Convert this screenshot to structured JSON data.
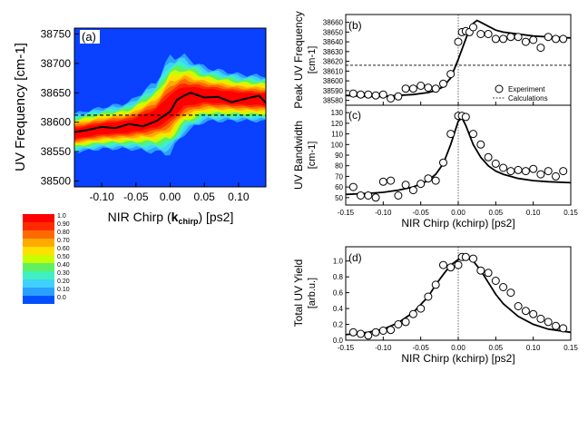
{
  "panel_a": {
    "label": "(a)",
    "ylabel": "UV Frequency [cm-1]",
    "xlabel_main": "NIR Chirp (",
    "xlabel_k": "k",
    "xlabel_sub": "chirp",
    "xlabel_end": ") [ps2]",
    "x_ticks": [
      "-0.10",
      "-0.05",
      "0.00",
      "0.05",
      "0.10"
    ],
    "y_ticks": [
      "38500",
      "38550",
      "38600",
      "38650",
      "38700",
      "38750"
    ]
  },
  "colorbar": {
    "labels": [
      "1.0",
      "0.90",
      "0.80",
      "0.70",
      "0.60",
      "0.50",
      "0.40",
      "0.30",
      "0.20",
      "0.10",
      "0.0"
    ],
    "colors": [
      "#ff0000",
      "#ff2a00",
      "#ff6a00",
      "#ffaa00",
      "#ffe000",
      "#c8ff00",
      "#60f060",
      "#40f0c0",
      "#40d0ff",
      "#2aa0ff",
      "#0050ff"
    ]
  },
  "panel_b": {
    "label": "(b)",
    "ylabel_line1": "Peak UV Frequency",
    "ylabel_line2": "[cm-1]",
    "y_ticks": [
      "38580",
      "38590",
      "38600",
      "38610",
      "38620",
      "38630",
      "38640",
      "38650",
      "38660"
    ],
    "legend_experiment": "Experiment",
    "legend_calculations": "Calculations"
  },
  "panel_c": {
    "label": "(c)",
    "ylabel_line1": "UV Bandwidth",
    "ylabel_line2": "[cm-1]",
    "y_ticks": [
      "50",
      "60",
      "70",
      "80",
      "90",
      "100",
      "110",
      "120",
      "130"
    ],
    "x_ticks": [
      "-0.15",
      "-0.10",
      "-0.05",
      "0.00",
      "0.05",
      "0.10",
      "0.15"
    ],
    "xlabel": "NIR Chirp (kchirp) [ps2]"
  },
  "panel_d": {
    "label": "(d)",
    "ylabel_line1": "Total UV Yield",
    "ylabel_line2": "[arb.u.]",
    "y_ticks": [
      "0.0",
      "0.2",
      "0.4",
      "0.6",
      "0.8",
      "1.0"
    ],
    "x_ticks": [
      "-0.15",
      "-0.10",
      "-0.05",
      "0.00",
      "0.05",
      "0.10",
      "0.15"
    ],
    "xlabel": "NIR Chirp (kchirp) [ps2]"
  },
  "chart_data": [
    {
      "type": "heatmap",
      "panel": "a",
      "xlim": [
        -0.14,
        0.14
      ],
      "ylim": [
        38490,
        38760
      ],
      "xlabel": "NIR Chirp (kchirp) [ps2]",
      "ylabel": "UV Frequency [cm-1]",
      "colorbar_range": [
        0.0,
        1.0
      ],
      "peak_line": {
        "x": [
          -0.14,
          -0.12,
          -0.1,
          -0.08,
          -0.06,
          -0.04,
          -0.02,
          0.0,
          0.01,
          0.02,
          0.03,
          0.05,
          0.07,
          0.09,
          0.11,
          0.13,
          0.14
        ],
        "y": [
          38583,
          38587,
          38592,
          38590,
          38597,
          38593,
          38602,
          38618,
          38638,
          38645,
          38650,
          38642,
          38643,
          38634,
          38640,
          38645,
          38633
        ]
      },
      "reference_dash_y": 38612,
      "band_center": {
        "x": [
          -0.14,
          -0.1,
          -0.06,
          -0.02,
          0.0,
          0.02,
          0.05,
          0.1,
          0.14
        ],
        "y": [
          38580,
          38588,
          38592,
          38606,
          38625,
          38643,
          38645,
          38640,
          38638
        ]
      },
      "band_halfwidth": {
        "x": [
          -0.14,
          -0.1,
          -0.06,
          -0.02,
          0.0,
          0.02,
          0.05,
          0.1,
          0.14
        ],
        "y": [
          30,
          32,
          36,
          55,
          75,
          60,
          42,
          36,
          35
        ]
      }
    },
    {
      "type": "scatter",
      "panel": "b",
      "xlim": [
        -0.15,
        0.15
      ],
      "ylim": [
        38575,
        38668
      ],
      "ylabel": "Peak UV Frequency [cm-1]",
      "reference_dash_y": 38616,
      "series": [
        {
          "name": "Experiment",
          "x": [
            -0.14,
            -0.13,
            -0.12,
            -0.11,
            -0.1,
            -0.09,
            -0.08,
            -0.07,
            -0.06,
            -0.05,
            -0.04,
            -0.03,
            -0.02,
            -0.01,
            0.0,
            0.005,
            0.01,
            0.015,
            0.02,
            0.03,
            0.04,
            0.05,
            0.06,
            0.07,
            0.08,
            0.09,
            0.1,
            0.11,
            0.12,
            0.13,
            0.14
          ],
          "y": [
            38587,
            38586,
            38586,
            38585,
            38586,
            38582,
            38584,
            38592,
            38592,
            38595,
            38593,
            38592,
            38597,
            38607,
            38640,
            38650,
            38651,
            38650,
            38655,
            38648,
            38648,
            38643,
            38643,
            38645,
            38645,
            38640,
            38642,
            38634,
            38645,
            38643,
            38643
          ]
        },
        {
          "name": "Calculations",
          "x": [
            -0.15,
            -0.12,
            -0.1,
            -0.08,
            -0.06,
            -0.04,
            -0.03,
            -0.02,
            -0.01,
            0.0,
            0.01,
            0.015,
            0.02,
            0.025,
            0.03,
            0.04,
            0.05,
            0.06,
            0.08,
            0.1,
            0.12,
            0.15
          ],
          "y": [
            38585,
            38584,
            38584,
            38585,
            38586,
            38588,
            38590,
            38594,
            38603,
            38622,
            38643,
            38653,
            38659,
            38662,
            38660,
            38656,
            38652,
            38650,
            38648,
            38646,
            38645,
            38644
          ]
        }
      ]
    },
    {
      "type": "scatter",
      "panel": "c",
      "xlim": [
        -0.15,
        0.15
      ],
      "ylim": [
        43,
        137
      ],
      "xlabel": "NIR Chirp (kchirp) [ps2]",
      "ylabel": "UV Bandwidth [cm-1]",
      "series": [
        {
          "name": "Experiment",
          "x": [
            -0.14,
            -0.13,
            -0.12,
            -0.11,
            -0.1,
            -0.09,
            -0.08,
            -0.07,
            -0.06,
            -0.05,
            -0.04,
            -0.03,
            -0.02,
            -0.01,
            0.0,
            0.005,
            0.01,
            0.02,
            0.03,
            0.04,
            0.05,
            0.06,
            0.07,
            0.08,
            0.09,
            0.1,
            0.11,
            0.12,
            0.13,
            0.14
          ],
          "y": [
            60,
            52,
            52,
            50,
            65,
            66,
            52,
            62,
            57,
            63,
            68,
            66,
            83,
            110,
            127,
            127,
            126,
            110,
            100,
            88,
            82,
            78,
            75,
            76,
            75,
            77,
            72,
            75,
            70,
            75
          ]
        },
        {
          "name": "Calculations",
          "x": [
            -0.15,
            -0.12,
            -0.1,
            -0.08,
            -0.06,
            -0.04,
            -0.03,
            -0.02,
            -0.01,
            0.0,
            0.005,
            0.01,
            0.02,
            0.03,
            0.04,
            0.05,
            0.06,
            0.08,
            0.1,
            0.12,
            0.15
          ],
          "y": [
            53,
            54,
            55,
            57,
            60,
            66,
            72,
            82,
            100,
            122,
            125,
            118,
            100,
            88,
            80,
            75,
            72,
            68,
            66,
            65,
            64
          ]
        }
      ]
    },
    {
      "type": "scatter",
      "panel": "d",
      "xlim": [
        -0.15,
        0.15
      ],
      "ylim": [
        0.0,
        1.18
      ],
      "xlabel": "NIR Chirp (kchirp) [ps2]",
      "ylabel": "Total UV Yield [arb.u.]",
      "series": [
        {
          "name": "Experiment",
          "x": [
            -0.14,
            -0.13,
            -0.12,
            -0.11,
            -0.1,
            -0.09,
            -0.08,
            -0.07,
            -0.06,
            -0.05,
            -0.04,
            -0.03,
            -0.02,
            -0.01,
            0.0,
            0.005,
            0.01,
            0.02,
            0.03,
            0.04,
            0.05,
            0.06,
            0.07,
            0.08,
            0.09,
            0.1,
            0.11,
            0.12,
            0.13,
            0.14
          ],
          "y": [
            0.1,
            0.08,
            0.06,
            0.1,
            0.12,
            0.13,
            0.2,
            0.23,
            0.33,
            0.4,
            0.55,
            0.7,
            0.95,
            0.92,
            0.95,
            1.05,
            1.05,
            1.03,
            0.88,
            0.85,
            0.75,
            0.67,
            0.6,
            0.43,
            0.37,
            0.33,
            0.27,
            0.23,
            0.18,
            0.15
          ]
        },
        {
          "name": "Calculations",
          "x": [
            -0.15,
            -0.12,
            -0.1,
            -0.08,
            -0.06,
            -0.04,
            -0.03,
            -0.02,
            -0.01,
            0.0,
            0.01,
            0.02,
            0.03,
            0.04,
            0.05,
            0.06,
            0.08,
            0.1,
            0.12,
            0.15
          ],
          "y": [
            0.07,
            0.1,
            0.14,
            0.22,
            0.35,
            0.55,
            0.7,
            0.83,
            0.95,
            1.02,
            1.05,
            1.0,
            0.88,
            0.73,
            0.58,
            0.46,
            0.3,
            0.2,
            0.14,
            0.1
          ]
        }
      ]
    }
  ]
}
